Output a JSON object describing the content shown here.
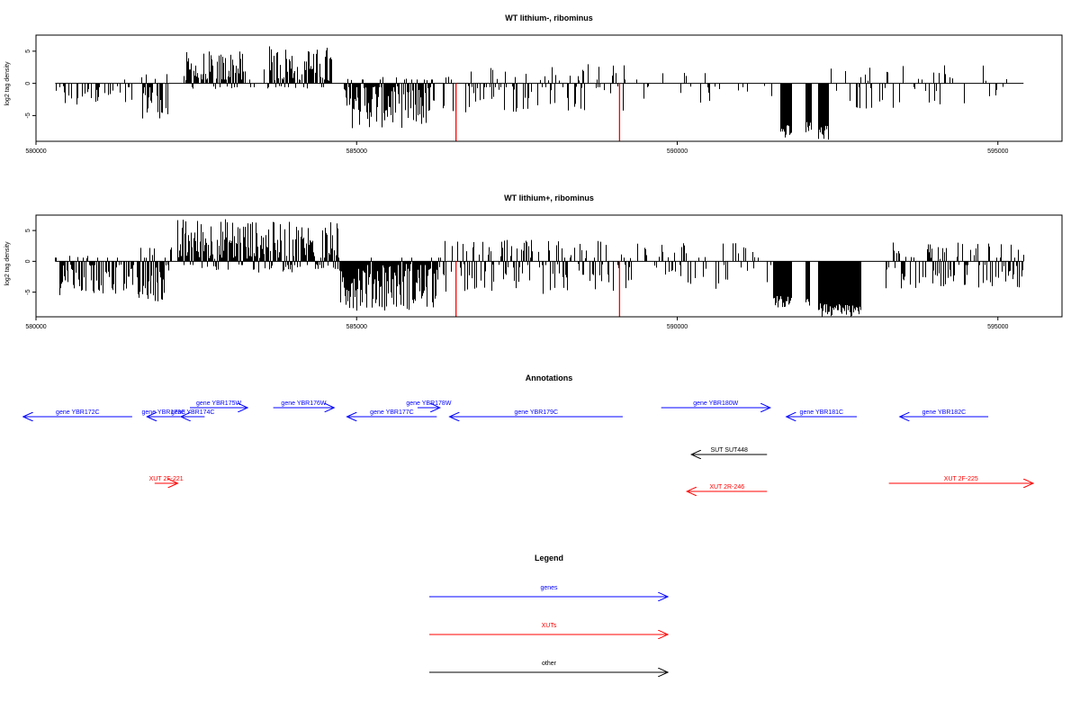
{
  "colors": {
    "gene": "#0000ff",
    "xut": "#ff0000",
    "other": "#000000",
    "bars": "#000000",
    "marker": "#ff0000"
  },
  "chart_data": [
    {
      "type": "bar",
      "title": "WT lithium-, ribominus",
      "ylabel": "log2 tag density",
      "xlim": [
        580000,
        596000
      ],
      "ylim": [
        -9,
        7.5
      ],
      "x_ticks": [
        580000,
        585000,
        590000,
        595000
      ],
      "x_tick_labels": [
        "580000",
        "585000",
        "590000",
        "595000"
      ],
      "y_ticks": [
        5,
        0,
        -5
      ],
      "y_tick_labels": [
        "5",
        "0",
        "-5"
      ],
      "baseline": {
        "from": 580300,
        "to": 595400
      },
      "red_markers": [
        {
          "x": 586550,
          "value": -9.0
        },
        {
          "x": 589100,
          "value": -9.0
        }
      ],
      "profile_segments": [
        {
          "x0": 580300,
          "x1": 581500,
          "min": -4.0,
          "max": 0.5,
          "density": 0.35
        },
        {
          "x0": 581600,
          "x1": 582050,
          "min": -5.5,
          "max": 2.0,
          "density": 0.7
        },
        {
          "x0": 582300,
          "x1": 583250,
          "min": -1.0,
          "max": 5.0,
          "density": 0.9
        },
        {
          "x0": 583250,
          "x1": 583600,
          "min": -1.0,
          "max": 3.0,
          "density": 0.3
        },
        {
          "x0": 583600,
          "x1": 584600,
          "min": -1.0,
          "max": 5.8,
          "density": 0.85
        },
        {
          "x0": 584800,
          "x1": 586200,
          "min": -7.0,
          "max": 1.0,
          "density": 0.95
        },
        {
          "x0": 586300,
          "x1": 589200,
          "min": -4.5,
          "max": 3.0,
          "density": 0.35
        },
        {
          "x0": 589300,
          "x1": 591500,
          "min": -3.5,
          "max": 2.0,
          "density": 0.15
        },
        {
          "x0": 591600,
          "x1": 591780,
          "min": -8.5,
          "max": 0.0,
          "density": 1.0
        },
        {
          "x0": 592000,
          "x1": 592080,
          "min": -8.0,
          "max": 0.0,
          "density": 1.0
        },
        {
          "x0": 592200,
          "x1": 592350,
          "min": -8.8,
          "max": 0.0,
          "density": 1.0
        },
        {
          "x0": 592350,
          "x1": 595400,
          "min": -4.0,
          "max": 2.8,
          "density": 0.2
        }
      ]
    },
    {
      "type": "bar",
      "title": "WT lithium+, ribominus",
      "ylabel": "log2 tag density",
      "xlim": [
        580000,
        596000
      ],
      "ylim": [
        -9,
        7.5
      ],
      "x_ticks": [
        580000,
        585000,
        590000,
        595000
      ],
      "x_tick_labels": [
        "580000",
        "585000",
        "590000",
        "595000"
      ],
      "y_ticks": [
        5,
        0,
        -5
      ],
      "y_tick_labels": [
        "5",
        "0",
        "-5"
      ],
      "baseline": {
        "from": 580300,
        "to": 595400
      },
      "red_markers": [
        {
          "x": 586550,
          "value": -9.0
        },
        {
          "x": 589100,
          "value": -9.0
        }
      ],
      "profile_segments": [
        {
          "x0": 580300,
          "x1": 581600,
          "min": -5.5,
          "max": 1.0,
          "density": 0.7
        },
        {
          "x0": 581600,
          "x1": 582100,
          "min": -6.5,
          "max": 2.5,
          "density": 0.9
        },
        {
          "x0": 582200,
          "x1": 583400,
          "min": -1.5,
          "max": 7.0,
          "density": 1.0
        },
        {
          "x0": 583400,
          "x1": 584700,
          "min": -2.0,
          "max": 6.5,
          "density": 0.9
        },
        {
          "x0": 584700,
          "x1": 586300,
          "min": -8.0,
          "max": 0.5,
          "density": 1.0
        },
        {
          "x0": 586300,
          "x1": 589300,
          "min": -5.5,
          "max": 3.5,
          "density": 0.6
        },
        {
          "x0": 589300,
          "x1": 591500,
          "min": -4.5,
          "max": 3.2,
          "density": 0.35
        },
        {
          "x0": 591500,
          "x1": 591780,
          "min": -7.5,
          "max": 0.0,
          "density": 1.0
        },
        {
          "x0": 592000,
          "x1": 592060,
          "min": -8.0,
          "max": 0.0,
          "density": 1.0
        },
        {
          "x0": 592200,
          "x1": 592850,
          "min": -9.0,
          "max": 0.0,
          "density": 1.0
        },
        {
          "x0": 593200,
          "x1": 595400,
          "min": -4.5,
          "max": 3.2,
          "density": 0.55
        }
      ]
    },
    {
      "type": "annotation-track",
      "title": "Annotations",
      "features": [
        {
          "label": "gene YBR172C",
          "class": "gene",
          "start": 579800,
          "end": 581500,
          "strand": "-",
          "track": 2
        },
        {
          "label": "gene YBR173C",
          "class": "gene",
          "start": 581730,
          "end": 582250,
          "strand": "-",
          "track": 2
        },
        {
          "label": "gene YBR174C",
          "class": "gene",
          "start": 582260,
          "end": 582630,
          "strand": "-",
          "track": 2
        },
        {
          "label": "gene YBR175W",
          "class": "gene",
          "start": 582400,
          "end": 583300,
          "strand": "+",
          "track": 1
        },
        {
          "label": "gene YBR176W",
          "class": "gene",
          "start": 583700,
          "end": 584650,
          "strand": "+",
          "track": 1
        },
        {
          "label": "gene YBR177C",
          "class": "gene",
          "start": 584850,
          "end": 586250,
          "strand": "-",
          "track": 2
        },
        {
          "label": "gene YBR178W",
          "class": "gene",
          "start": 585950,
          "end": 586300,
          "strand": "+",
          "track": 1
        },
        {
          "label": "gene YBR179C",
          "class": "gene",
          "start": 586450,
          "end": 589150,
          "strand": "-",
          "track": 2
        },
        {
          "label": "gene YBR180W",
          "class": "gene",
          "start": 589750,
          "end": 591450,
          "strand": "+",
          "track": 1
        },
        {
          "label": "gene YBR181C",
          "class": "gene",
          "start": 591700,
          "end": 592800,
          "strand": "-",
          "track": 2
        },
        {
          "label": "gene YBR182C",
          "class": "gene",
          "start": 593470,
          "end": 594850,
          "strand": "-",
          "track": 2
        },
        {
          "label": "SUT SUT448",
          "class": "other",
          "start": 590220,
          "end": 591400,
          "strand": "-",
          "track": 3
        },
        {
          "label": "XUT 2F-221",
          "class": "xut",
          "start": 581850,
          "end": 582210,
          "strand": "+",
          "track": 4
        },
        {
          "label": "XUT 2R-246",
          "class": "xut",
          "start": 590150,
          "end": 591400,
          "strand": "-",
          "track": 5
        },
        {
          "label": "XUT 2F-225",
          "class": "xut",
          "start": 593300,
          "end": 595550,
          "strand": "+",
          "track": 4
        }
      ]
    }
  ],
  "legend": {
    "title": "Legend",
    "items": [
      {
        "label": "genes",
        "class": "gene"
      },
      {
        "label": "XUTs",
        "class": "xut"
      },
      {
        "label": "other",
        "class": "other"
      }
    ]
  }
}
